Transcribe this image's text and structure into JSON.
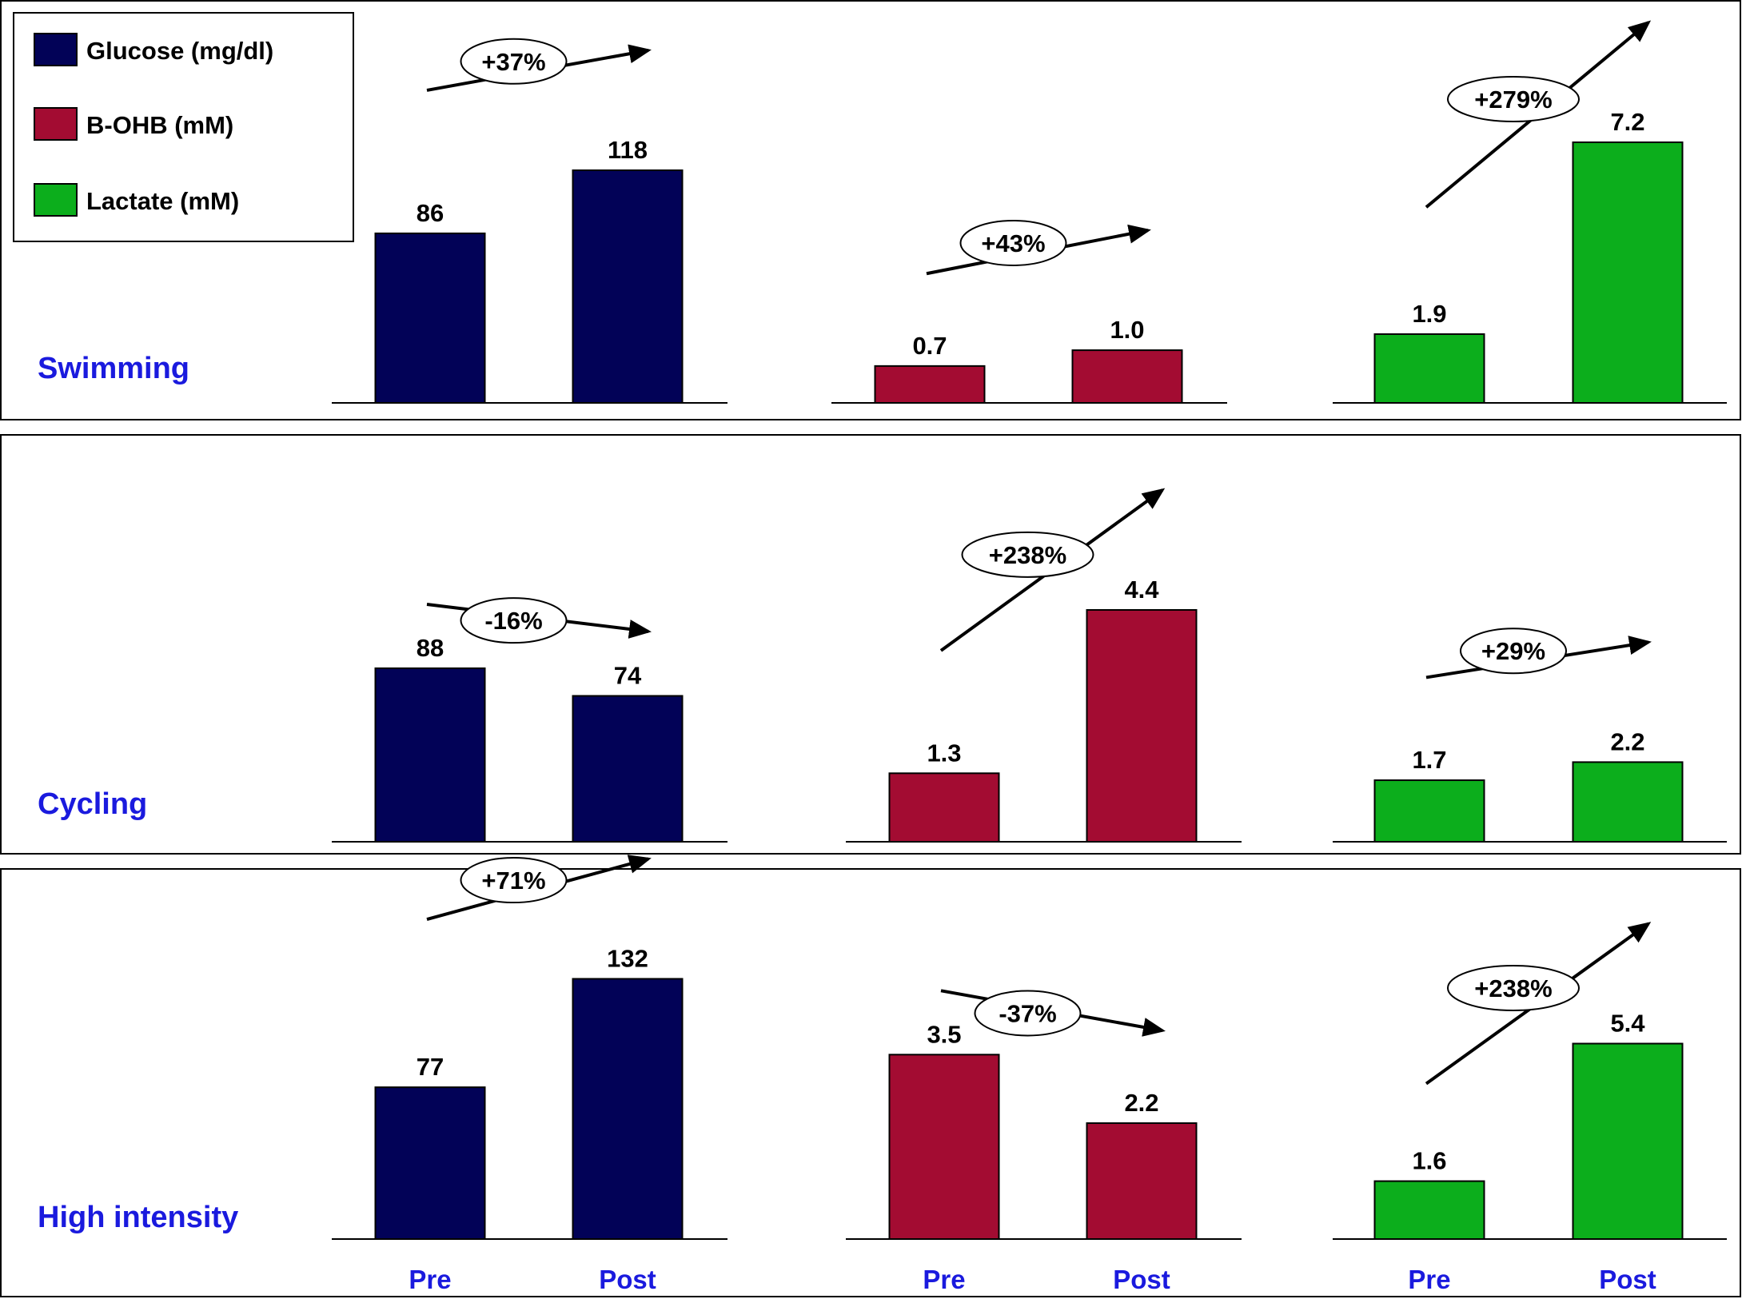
{
  "chart_data": {
    "type": "bar",
    "categories": [
      "Pre",
      "Post"
    ],
    "colors": {
      "glucose": "#020257",
      "bohb": "#a30c32",
      "lactate": "#0cae1c",
      "title": "#1a1ade"
    },
    "legend": {
      "position": "top-left",
      "entries": [
        {
          "key": "glucose",
          "label": "Glucose (mg/dl)"
        },
        {
          "key": "bohb",
          "label": "B-OHB (mM)"
        },
        {
          "key": "lactate",
          "label": "Lactate (mM)"
        }
      ]
    },
    "panels": [
      {
        "title": "Swimming",
        "groups": [
          {
            "key": "glucose",
            "values": [
              86,
              118
            ],
            "labels": [
              "86",
              "118"
            ],
            "change": "+37%"
          },
          {
            "key": "bohb",
            "values": [
              0.7,
              1.0
            ],
            "labels": [
              "0.7",
              "1.0"
            ],
            "change": "+43%"
          },
          {
            "key": "lactate",
            "values": [
              1.9,
              7.2
            ],
            "labels": [
              "1.9",
              "7.2"
            ],
            "change": "+279%"
          }
        ]
      },
      {
        "title": "Cycling",
        "groups": [
          {
            "key": "glucose",
            "values": [
              88,
              74
            ],
            "labels": [
              "88",
              "74"
            ],
            "change": "-16%"
          },
          {
            "key": "bohb",
            "values": [
              1.3,
              4.4
            ],
            "labels": [
              "1.3",
              "4.4"
            ],
            "change": "+238%"
          },
          {
            "key": "lactate",
            "values": [
              1.7,
              2.2
            ],
            "labels": [
              "1.7",
              "2.2"
            ],
            "change": "+29%"
          }
        ]
      },
      {
        "title": "High intensity",
        "groups": [
          {
            "key": "glucose",
            "values": [
              77,
              132
            ],
            "labels": [
              "77",
              "132"
            ],
            "change": "+71%"
          },
          {
            "key": "bohb",
            "values": [
              3.5,
              2.2
            ],
            "labels": [
              "3.5",
              "2.2"
            ],
            "change": "-37%"
          },
          {
            "key": "lactate",
            "values": [
              1.6,
              5.4
            ],
            "labels": [
              "1.6",
              "5.4"
            ],
            "change": "+238%"
          }
        ]
      }
    ]
  }
}
